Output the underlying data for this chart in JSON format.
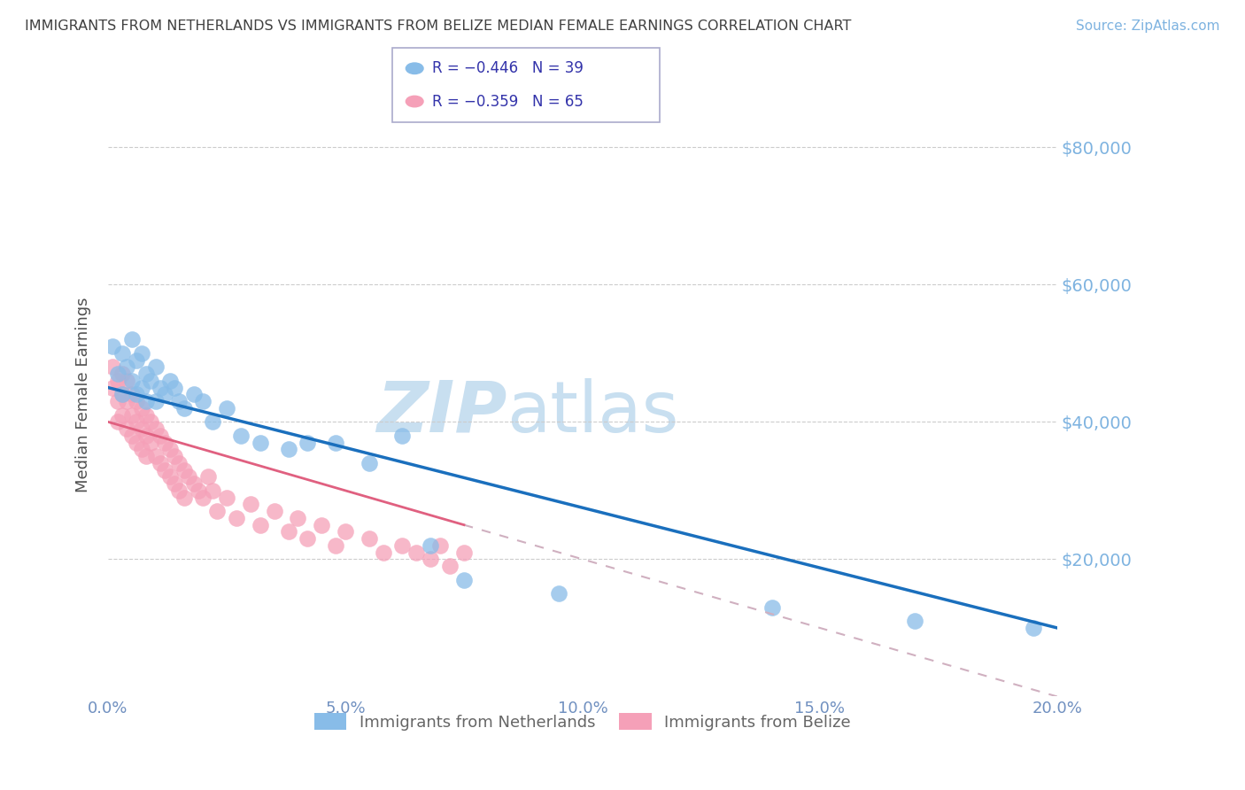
{
  "title": "IMMIGRANTS FROM NETHERLANDS VS IMMIGRANTS FROM BELIZE MEDIAN FEMALE EARNINGS CORRELATION CHART",
  "source": "Source: ZipAtlas.com",
  "ylabel": "Median Female Earnings",
  "xlabel_ticks": [
    "0.0%",
    "5.0%",
    "10.0%",
    "15.0%",
    "20.0%"
  ],
  "xlabel_vals": [
    0.0,
    0.05,
    0.1,
    0.15,
    0.2
  ],
  "ytick_labels": [
    "$80,000",
    "$60,000",
    "$40,000",
    "$20,000"
  ],
  "ytick_vals": [
    80000,
    60000,
    40000,
    20000
  ],
  "ylim": [
    0,
    88000
  ],
  "xlim": [
    0.0,
    0.2
  ],
  "netherlands_R": -0.446,
  "netherlands_N": 39,
  "belize_R": -0.359,
  "belize_N": 65,
  "netherlands_color": "#88bce8",
  "belize_color": "#f5a0b8",
  "netherlands_line_color": "#1a6fbd",
  "belize_line_color": "#e06080",
  "belize_dash_color": "#d0b0c0",
  "watermark_zip_color": "#c8dff0",
  "watermark_atlas_color": "#c8dff0",
  "title_color": "#404040",
  "source_color": "#7eb3e0",
  "axis_tick_color": "#7090c0",
  "ylabel_color": "#505050",
  "background_color": "#ffffff",
  "grid_color": "#cccccc",
  "legend_text_color": "#3333aa",
  "bottom_legend_color": "#666666",
  "netherlands_x": [
    0.001,
    0.002,
    0.003,
    0.003,
    0.004,
    0.005,
    0.005,
    0.006,
    0.006,
    0.007,
    0.007,
    0.008,
    0.008,
    0.009,
    0.01,
    0.01,
    0.011,
    0.012,
    0.013,
    0.014,
    0.015,
    0.016,
    0.018,
    0.02,
    0.022,
    0.025,
    0.028,
    0.032,
    0.038,
    0.042,
    0.048,
    0.055,
    0.062,
    0.068,
    0.075,
    0.095,
    0.14,
    0.17,
    0.195
  ],
  "netherlands_y": [
    51000,
    47000,
    50000,
    44000,
    48000,
    52000,
    46000,
    49000,
    44000,
    50000,
    45000,
    47000,
    43000,
    46000,
    48000,
    43000,
    45000,
    44000,
    46000,
    45000,
    43000,
    42000,
    44000,
    43000,
    40000,
    42000,
    38000,
    37000,
    36000,
    37000,
    37000,
    34000,
    38000,
    22000,
    17000,
    15000,
    13000,
    11000,
    10000
  ],
  "belize_x": [
    0.001,
    0.001,
    0.002,
    0.002,
    0.002,
    0.003,
    0.003,
    0.003,
    0.004,
    0.004,
    0.004,
    0.005,
    0.005,
    0.005,
    0.006,
    0.006,
    0.006,
    0.007,
    0.007,
    0.007,
    0.008,
    0.008,
    0.008,
    0.009,
    0.009,
    0.01,
    0.01,
    0.011,
    0.011,
    0.012,
    0.012,
    0.013,
    0.013,
    0.014,
    0.014,
    0.015,
    0.015,
    0.016,
    0.016,
    0.017,
    0.018,
    0.019,
    0.02,
    0.021,
    0.022,
    0.023,
    0.025,
    0.027,
    0.03,
    0.032,
    0.035,
    0.038,
    0.04,
    0.042,
    0.045,
    0.048,
    0.05,
    0.055,
    0.058,
    0.062,
    0.065,
    0.068,
    0.07,
    0.072,
    0.075
  ],
  "belize_y": [
    48000,
    45000,
    46000,
    43000,
    40000,
    47000,
    44000,
    41000,
    46000,
    43000,
    39000,
    44000,
    41000,
    38000,
    43000,
    40000,
    37000,
    42000,
    39000,
    36000,
    41000,
    38000,
    35000,
    40000,
    37000,
    39000,
    35000,
    38000,
    34000,
    37000,
    33000,
    36000,
    32000,
    35000,
    31000,
    34000,
    30000,
    33000,
    29000,
    32000,
    31000,
    30000,
    29000,
    32000,
    30000,
    27000,
    29000,
    26000,
    28000,
    25000,
    27000,
    24000,
    26000,
    23000,
    25000,
    22000,
    24000,
    23000,
    21000,
    22000,
    21000,
    20000,
    22000,
    19000,
    21000
  ]
}
